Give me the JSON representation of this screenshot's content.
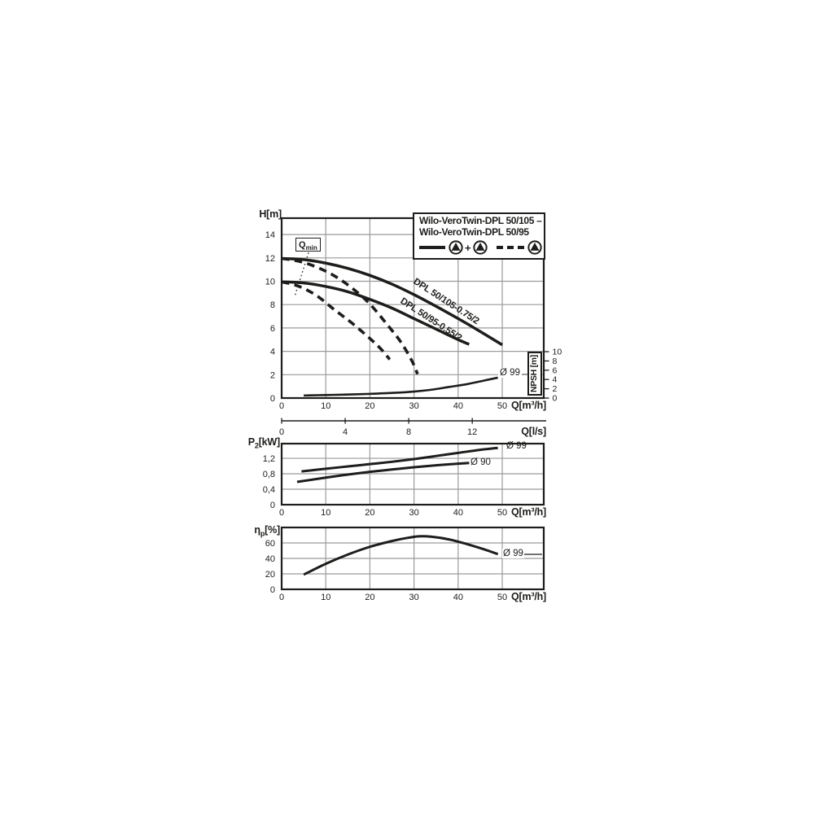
{
  "page": {
    "background": "#ffffff"
  },
  "colors": {
    "ink": "#1d1d1b",
    "grid": "#9a9a9a",
    "white": "#ffffff"
  },
  "legend": {
    "line1": "Wilo-VeroTwin-DPL 50/105 –",
    "line2": "Wilo-VeroTwin-DPL 50/95",
    "plus": "+",
    "icons": [
      "pump-icon",
      "pump-icon",
      "pump-icon"
    ],
    "samples": [
      "solid-line",
      "dashed-line"
    ]
  },
  "chart_data": [
    {
      "id": "head",
      "type": "line",
      "title": "",
      "xlabel": "Q[m³/h]",
      "ylabel": "H[m]",
      "ylabel_parts": {
        "main": "H",
        "sub": "",
        "unit": "[m]"
      },
      "xlim": [
        0,
        59.4
      ],
      "ylim": [
        0,
        15.4
      ],
      "grid": true,
      "x_ticks": [
        0,
        10,
        20,
        30,
        40,
        50
      ],
      "y_ticks": [
        {
          "v": 0,
          "label": "0"
        },
        {
          "v": 2,
          "label": "2"
        },
        {
          "v": 4,
          "label": "4"
        },
        {
          "v": 6,
          "label": "6"
        },
        {
          "v": 8,
          "label": "8"
        },
        {
          "v": 10,
          "label": "10"
        },
        {
          "v": 12,
          "label": "12"
        },
        {
          "v": 14,
          "label": "14"
        }
      ],
      "x2_axis": {
        "label": "Q[l/s]",
        "ticks": [
          0,
          4,
          8,
          12
        ],
        "to_primary_factor": 3.6
      },
      "right_axis": {
        "label": "NPSH [m]",
        "ticks": [
          0,
          2,
          4,
          6,
          8,
          10
        ],
        "ylim": [
          0,
          38.8
        ]
      },
      "series": [
        {
          "id": "dpl-50-105-duo",
          "name": "DPL 50/105-0.75/2 (both pumps)",
          "style": "solid",
          "width": 3.5,
          "points": [
            [
              0,
              11.95
            ],
            [
              5,
              11.85
            ],
            [
              10,
              11.55
            ],
            [
              15,
              11.1
            ],
            [
              20,
              10.5
            ],
            [
              25,
              9.75
            ],
            [
              30,
              8.85
            ],
            [
              35,
              7.85
            ],
            [
              40,
              6.8
            ],
            [
              45,
              5.7
            ],
            [
              50,
              4.55
            ]
          ]
        },
        {
          "id": "dpl-50-95-duo",
          "name": "DPL 50/95-0.55/2 (both pumps)",
          "style": "solid",
          "width": 3.5,
          "points": [
            [
              0,
              9.95
            ],
            [
              5,
              9.85
            ],
            [
              10,
              9.55
            ],
            [
              15,
              9.1
            ],
            [
              20,
              8.45
            ],
            [
              25,
              7.7
            ],
            [
              30,
              6.8
            ],
            [
              35,
              5.9
            ],
            [
              40,
              5.0
            ],
            [
              42.5,
              4.6
            ]
          ]
        },
        {
          "id": "dpl-50-105-single",
          "name": "DPL 50/105 (single pump)",
          "style": "dashed",
          "width": 3.6,
          "points": [
            [
              0,
              11.95
            ],
            [
              4,
              11.7
            ],
            [
              8,
              11.2
            ],
            [
              12,
              10.45
            ],
            [
              16,
              9.4
            ],
            [
              20,
              8.05
            ],
            [
              24,
              6.25
            ],
            [
              27,
              4.8
            ],
            [
              29.5,
              3.2
            ],
            [
              30.8,
              2.05
            ]
          ]
        },
        {
          "id": "dpl-50-95-single",
          "name": "DPL 50/95 (single pump)",
          "style": "dashed",
          "width": 3.6,
          "points": [
            [
              0,
              9.95
            ],
            [
              4,
              9.55
            ],
            [
              8,
              8.75
            ],
            [
              12,
              7.55
            ],
            [
              16,
              6.4
            ],
            [
              20,
              5.1
            ],
            [
              22.5,
              4.2
            ],
            [
              24.5,
              3.3
            ]
          ]
        },
        {
          "id": "npsh-curve",
          "name": "NPSH Ø 99",
          "style": "solid",
          "width": 2.6,
          "axis": "right",
          "points": [
            [
              5,
              0.55
            ],
            [
              10,
              0.65
            ],
            [
              15,
              0.75
            ],
            [
              20,
              0.9
            ],
            [
              25,
              1.1
            ],
            [
              30,
              1.4
            ],
            [
              34,
              1.8
            ],
            [
              38,
              2.4
            ],
            [
              42,
              3.0
            ],
            [
              46,
              3.8
            ],
            [
              49,
              4.4
            ]
          ]
        },
        {
          "id": "qmin-limit",
          "name": "Qmin limit",
          "style": "dotted",
          "width": 1.3,
          "points": [
            [
              6.1,
              12.45
            ],
            [
              2.95,
              8.7
            ]
          ]
        }
      ],
      "annotations": {
        "qmin": {
          "main": "Q",
          "sub": "min"
        },
        "curve1_label": "DPL 50/105-0.75/2",
        "curve2_label": "DPL 50/95-0.55/2",
        "npsh_label": "Ø 99"
      }
    },
    {
      "id": "power",
      "type": "line",
      "xlabel": "Q[m³/h]",
      "ylabel": "P2[kW]",
      "ylabel_parts": {
        "main": "P",
        "sub": "2",
        "unit": "[kW]"
      },
      "xlim": [
        0,
        59.4
      ],
      "ylim": [
        0,
        1.58
      ],
      "grid": true,
      "x_ticks": [
        0,
        10,
        20,
        30,
        40,
        50
      ],
      "y_ticks": [
        {
          "v": 0,
          "label": "0"
        },
        {
          "v": 0.4,
          "label": "0,4"
        },
        {
          "v": 0.8,
          "label": "0,8"
        },
        {
          "v": 1.2,
          "label": "1,2"
        }
      ],
      "series": [
        {
          "id": "p2-d99",
          "name": "P2 Ø 99",
          "style": "solid",
          "width": 3,
          "points": [
            [
              4.5,
              0.86
            ],
            [
              10,
              0.93
            ],
            [
              15,
              0.99
            ],
            [
              20,
              1.05
            ],
            [
              25,
              1.11
            ],
            [
              30,
              1.18
            ],
            [
              35,
              1.26
            ],
            [
              40,
              1.34
            ],
            [
              45,
              1.42
            ],
            [
              49,
              1.47
            ]
          ]
        },
        {
          "id": "p2-d90",
          "name": "P2 Ø 90",
          "style": "solid",
          "width": 3,
          "points": [
            [
              3.5,
              0.59
            ],
            [
              10,
              0.7
            ],
            [
              15,
              0.78
            ],
            [
              20,
              0.85
            ],
            [
              25,
              0.91
            ],
            [
              30,
              0.97
            ],
            [
              35,
              1.02
            ],
            [
              40,
              1.06
            ],
            [
              42.5,
              1.08
            ]
          ]
        }
      ],
      "annotations": {
        "o99": "Ø 99",
        "o90": "Ø 90"
      }
    },
    {
      "id": "efficiency",
      "type": "line",
      "xlabel": "Q[m³/h]",
      "ylabel": "ηp[%]",
      "ylabel_parts": {
        "main": "η",
        "sub": "p",
        "unit": "[%]"
      },
      "xlim": [
        0,
        59.4
      ],
      "ylim": [
        0,
        80
      ],
      "grid": true,
      "x_ticks": [
        0,
        10,
        20,
        30,
        40,
        50
      ],
      "y_ticks": [
        {
          "v": 0,
          "label": "0"
        },
        {
          "v": 20,
          "label": "20"
        },
        {
          "v": 40,
          "label": "40"
        },
        {
          "v": 60,
          "label": "60"
        }
      ],
      "series": [
        {
          "id": "eff-d99",
          "name": "Efficiency Ø 99",
          "style": "solid",
          "width": 3,
          "points": [
            [
              5,
              19
            ],
            [
              10,
              33
            ],
            [
              15,
              45
            ],
            [
              20,
              55
            ],
            [
              25,
              62.5
            ],
            [
              28,
              66
            ],
            [
              31,
              68.5
            ],
            [
              34,
              68
            ],
            [
              38,
              64.5
            ],
            [
              42,
              58.5
            ],
            [
              46,
              51.5
            ],
            [
              49,
              45.5
            ]
          ]
        }
      ],
      "annotations": {
        "o99": "Ø 99"
      }
    }
  ]
}
